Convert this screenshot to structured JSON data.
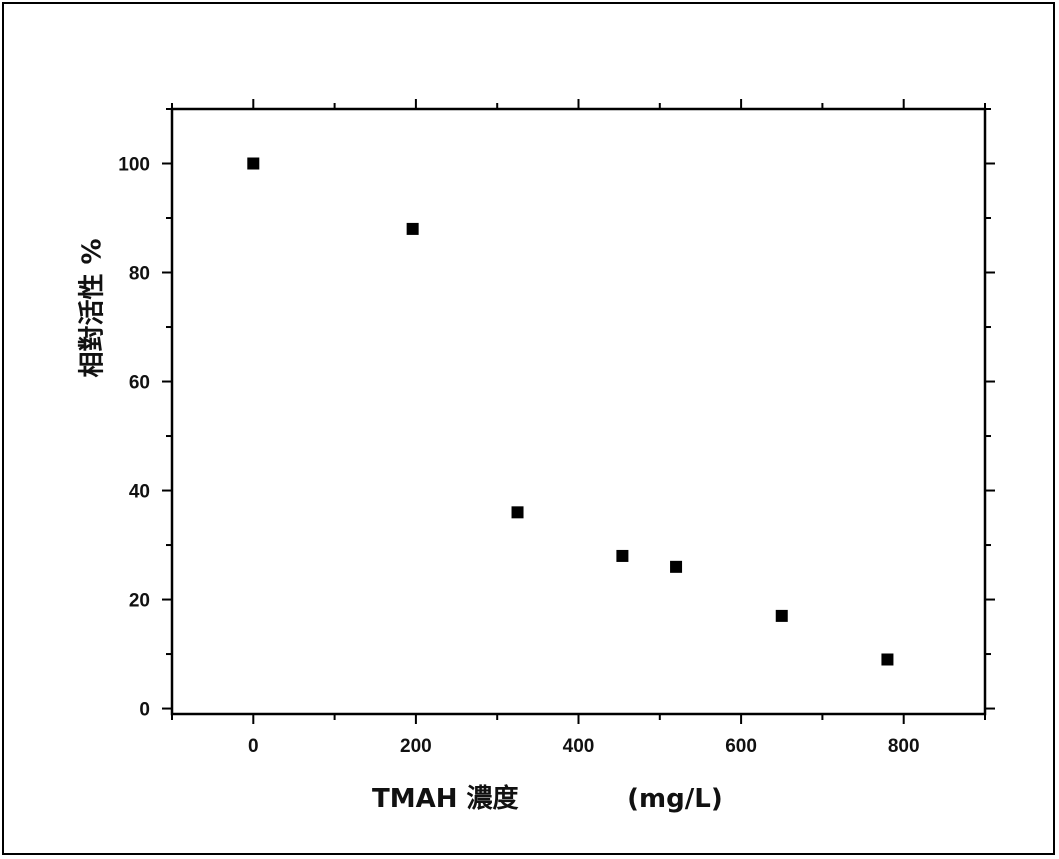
{
  "chart_data": {
    "type": "scatter",
    "xlabel": "TMAH 濃度            (mg/L)",
    "ylabel": "相對活性 %",
    "xlim": [
      -100,
      900
    ],
    "ylim": [
      -1,
      110
    ],
    "x_ticks": [
      0,
      200,
      400,
      600,
      800
    ],
    "y_ticks": [
      0,
      20,
      40,
      60,
      80,
      100
    ],
    "grid": false,
    "marker": "square",
    "marker_color": "#000000",
    "series": [
      {
        "x": [
          0,
          196,
          325,
          454,
          520,
          650,
          780
        ],
        "y": [
          100,
          88,
          36,
          28,
          26,
          17,
          9
        ]
      }
    ]
  }
}
